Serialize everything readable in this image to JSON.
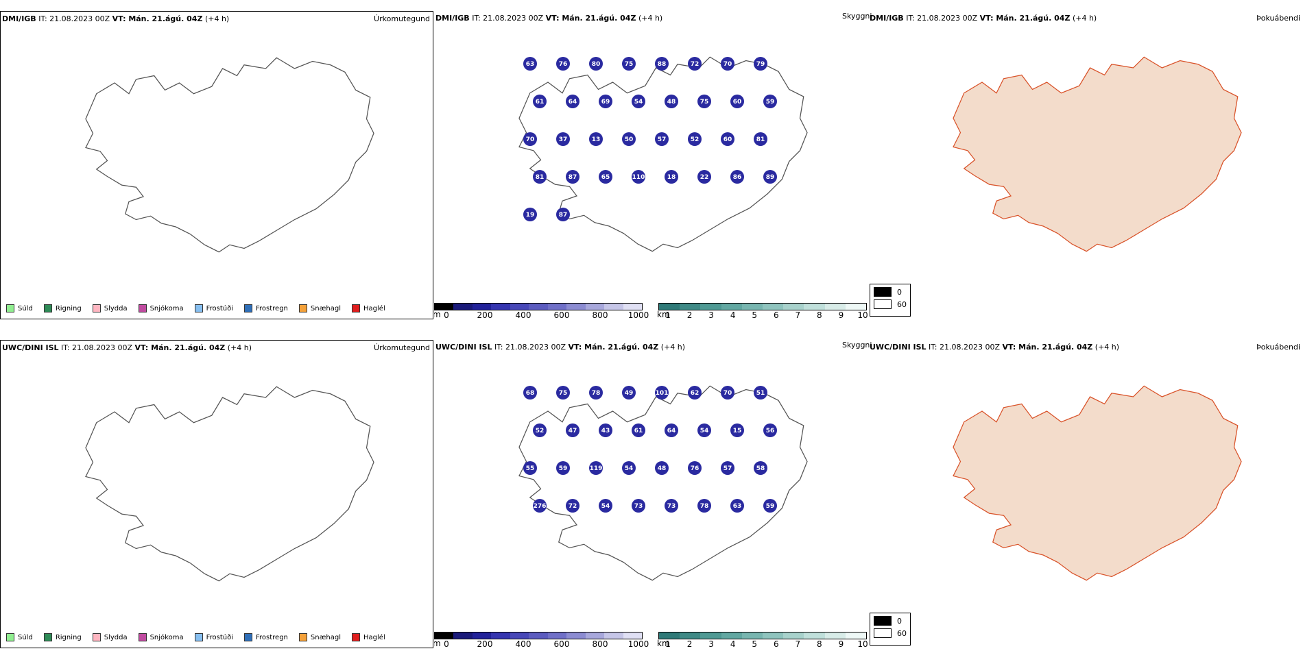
{
  "rows": [
    {
      "model": "DMI/IGB",
      "it": "IT: 21.08.2023 00Z",
      "vt": "VT: Mán. 21.ágú. 04Z",
      "lead": "(+4 h)",
      "vis_labels": [
        "63",
        "76",
        "80",
        "75",
        "88",
        "72",
        "70",
        "79",
        "61",
        "64",
        "69",
        "54",
        "48",
        "75",
        "60",
        "59",
        "70",
        "37",
        "13",
        "50",
        "57",
        "52",
        "60",
        "81",
        "81",
        "87",
        "65",
        "110",
        "18",
        "22",
        "86",
        "89",
        "19",
        "87"
      ],
      "vis_label_colors": "#ffffff"
    },
    {
      "model": "UWC/DINI ISL",
      "it": "IT: 21.08.2023 00Z",
      "vt": "VT: Mán. 21.ágú. 04Z",
      "lead": "(+4 h)",
      "vis_labels": [
        "68",
        "75",
        "78",
        "49",
        "101",
        "62",
        "70",
        "51",
        "52",
        "47",
        "43",
        "61",
        "64",
        "54",
        "15",
        "56",
        "55",
        "59",
        "119",
        "54",
        "48",
        "76",
        "57",
        "58",
        "276",
        "72",
        "54",
        "73",
        "73",
        "78",
        "63",
        "59"
      ],
      "vis_label_colors": "#ffffff"
    }
  ],
  "panels": {
    "precip_name": "Úrkomutegund",
    "vis_name": "Skyggni",
    "fog_name": "Þokuábendi"
  },
  "precip_legend": [
    {
      "label": "Súld",
      "color": "#90ee90"
    },
    {
      "label": "Rigning",
      "color": "#2e8b57"
    },
    {
      "label": "Slydda",
      "color": "#ffb6c1"
    },
    {
      "label": "Snjókoma",
      "color": "#c04ba0"
    },
    {
      "label": "Frostúði",
      "color": "#87bff0"
    },
    {
      "label": "Frostregn",
      "color": "#2f6fb8"
    },
    {
      "label": "Snæhagl",
      "color": "#f4a13a"
    },
    {
      "label": "Haglél",
      "color": "#e01e1e"
    }
  ],
  "vis_colorbar_m": {
    "unit": "m",
    "ticks": [
      "0",
      "200",
      "400",
      "600",
      "800",
      "1000"
    ],
    "colors": [
      "#000000",
      "#1a1a7a",
      "#22229a",
      "#3535b0",
      "#4848b8",
      "#5c5cc0",
      "#7070c8",
      "#8c8cd2",
      "#a8a8dc",
      "#c6c6e8",
      "#e0e0f4"
    ]
  },
  "vis_colorbar_km": {
    "unit": "km",
    "ticks": [
      "1",
      "2",
      "3",
      "4",
      "5",
      "6",
      "7",
      "8",
      "9",
      "10"
    ],
    "colors": [
      "#2f7a78",
      "#3f8a86",
      "#4f9a94",
      "#62a8a2",
      "#78b6b0",
      "#8fc4be",
      "#a8d2cc",
      "#c0e0db",
      "#d8ece8",
      "#eef8f6"
    ]
  },
  "fog_legend": [
    {
      "label": "0",
      "color": "#000000"
    },
    {
      "label": "60",
      "color": "#ffffff"
    }
  ]
}
